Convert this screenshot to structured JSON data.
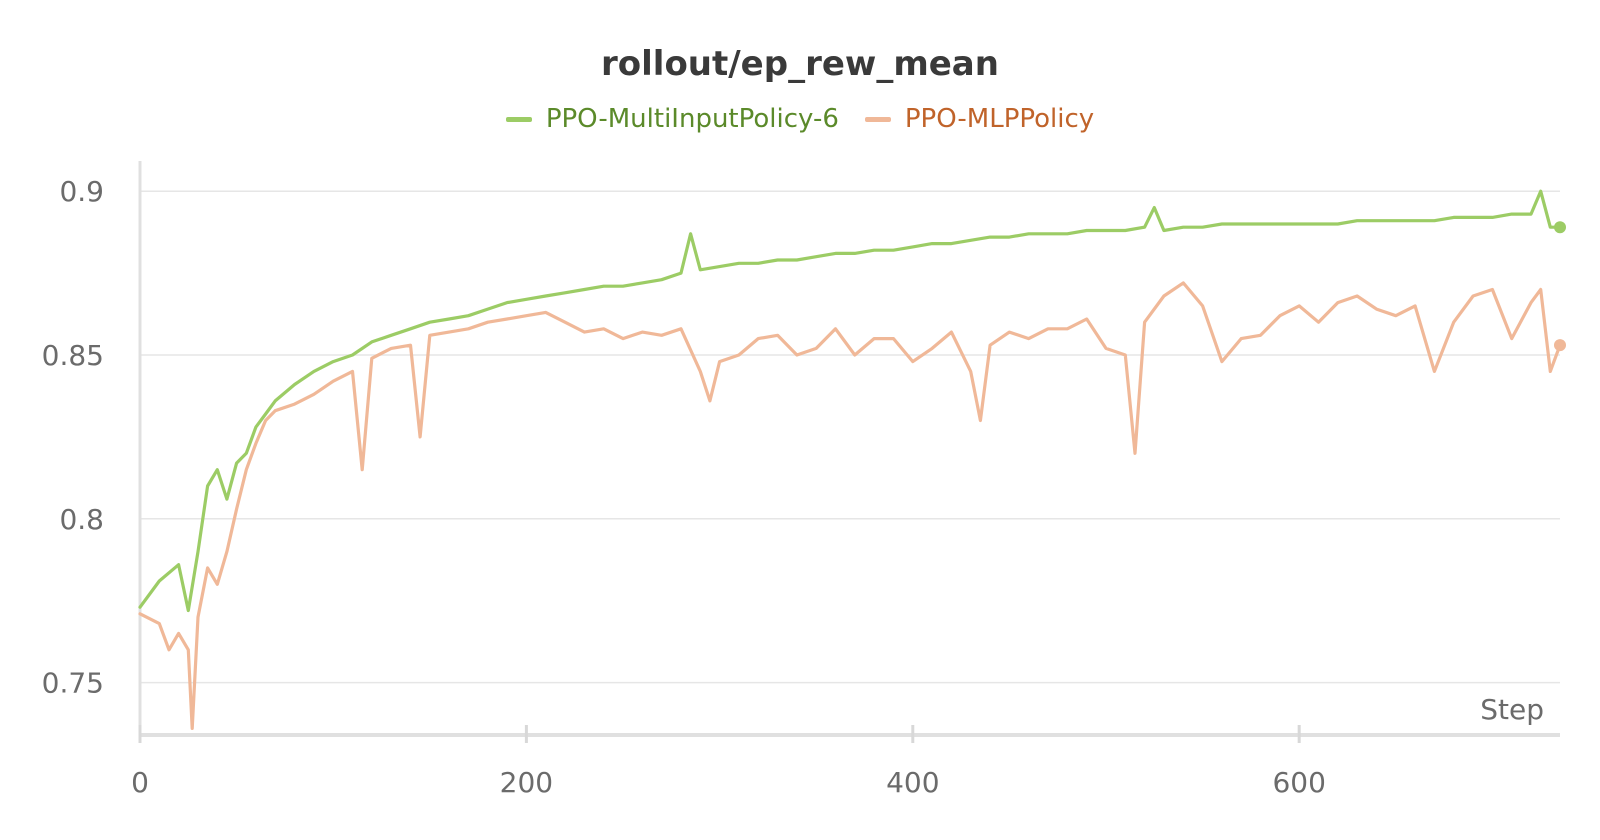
{
  "chart_data": {
    "type": "line",
    "title": "rollout/ep_rew_mean",
    "xlabel": "Step",
    "ylabel": "",
    "xlim": [
      0,
      735
    ],
    "ylim": [
      0.734,
      0.908
    ],
    "x_ticks": [
      0,
      200,
      400,
      600
    ],
    "y_ticks": [
      0.75,
      0.8,
      0.85,
      0.9
    ],
    "x_tick_labels": [
      "0",
      "200",
      "400",
      "600"
    ],
    "y_tick_labels": [
      "0.75",
      "0.8",
      "0.85",
      "0.9"
    ],
    "grid": true,
    "legend_position": "top-center",
    "series": [
      {
        "name": "PPO-MultiInputPolicy-6",
        "color": "#9ccc65",
        "label_color": "#5b8a2a",
        "x": [
          0,
          10,
          20,
          25,
          30,
          35,
          40,
          45,
          50,
          55,
          60,
          65,
          70,
          80,
          90,
          100,
          110,
          120,
          130,
          140,
          150,
          160,
          170,
          180,
          190,
          200,
          210,
          220,
          230,
          240,
          250,
          260,
          270,
          280,
          285,
          290,
          300,
          310,
          320,
          330,
          340,
          350,
          360,
          370,
          380,
          390,
          400,
          410,
          420,
          430,
          440,
          450,
          460,
          470,
          480,
          490,
          500,
          510,
          520,
          525,
          530,
          540,
          550,
          560,
          570,
          580,
          590,
          600,
          610,
          620,
          630,
          640,
          650,
          660,
          670,
          680,
          690,
          700,
          710,
          720,
          725,
          730,
          735
        ],
        "y": [
          0.773,
          0.781,
          0.786,
          0.772,
          0.79,
          0.81,
          0.815,
          0.806,
          0.817,
          0.82,
          0.828,
          0.832,
          0.836,
          0.841,
          0.845,
          0.848,
          0.85,
          0.854,
          0.856,
          0.858,
          0.86,
          0.861,
          0.862,
          0.864,
          0.866,
          0.867,
          0.868,
          0.869,
          0.87,
          0.871,
          0.871,
          0.872,
          0.873,
          0.875,
          0.887,
          0.876,
          0.877,
          0.878,
          0.878,
          0.879,
          0.879,
          0.88,
          0.881,
          0.881,
          0.882,
          0.882,
          0.883,
          0.884,
          0.884,
          0.885,
          0.886,
          0.886,
          0.887,
          0.887,
          0.887,
          0.888,
          0.888,
          0.888,
          0.889,
          0.895,
          0.888,
          0.889,
          0.889,
          0.89,
          0.89,
          0.89,
          0.89,
          0.89,
          0.89,
          0.89,
          0.891,
          0.891,
          0.891,
          0.891,
          0.891,
          0.892,
          0.892,
          0.892,
          0.893,
          0.893,
          0.9,
          0.889,
          0.889
        ]
      },
      {
        "name": "PPO-MLPPolicy",
        "color": "#f0b898",
        "label_color": "#c0632a",
        "x": [
          0,
          10,
          15,
          20,
          25,
          27,
          30,
          35,
          40,
          45,
          50,
          55,
          60,
          65,
          70,
          80,
          90,
          100,
          110,
          115,
          120,
          130,
          140,
          145,
          150,
          160,
          170,
          180,
          190,
          200,
          210,
          220,
          230,
          240,
          250,
          260,
          270,
          280,
          290,
          295,
          300,
          310,
          320,
          330,
          340,
          350,
          360,
          370,
          380,
          390,
          400,
          410,
          420,
          430,
          435,
          440,
          450,
          460,
          470,
          480,
          490,
          500,
          510,
          515,
          520,
          530,
          540,
          550,
          560,
          570,
          580,
          590,
          600,
          610,
          620,
          630,
          640,
          650,
          660,
          670,
          680,
          690,
          700,
          710,
          720,
          725,
          730,
          735
        ],
        "y": [
          0.771,
          0.768,
          0.76,
          0.765,
          0.76,
          0.736,
          0.77,
          0.785,
          0.78,
          0.79,
          0.803,
          0.815,
          0.823,
          0.83,
          0.833,
          0.835,
          0.838,
          0.842,
          0.845,
          0.815,
          0.849,
          0.852,
          0.853,
          0.825,
          0.856,
          0.857,
          0.858,
          0.86,
          0.861,
          0.862,
          0.863,
          0.86,
          0.857,
          0.858,
          0.855,
          0.857,
          0.856,
          0.858,
          0.845,
          0.836,
          0.848,
          0.85,
          0.855,
          0.856,
          0.85,
          0.852,
          0.858,
          0.85,
          0.855,
          0.855,
          0.848,
          0.852,
          0.857,
          0.845,
          0.83,
          0.853,
          0.857,
          0.855,
          0.858,
          0.858,
          0.861,
          0.852,
          0.85,
          0.82,
          0.86,
          0.868,
          0.872,
          0.865,
          0.848,
          0.855,
          0.856,
          0.862,
          0.865,
          0.86,
          0.866,
          0.868,
          0.864,
          0.862,
          0.865,
          0.845,
          0.86,
          0.868,
          0.87,
          0.855,
          0.866,
          0.87,
          0.845,
          0.853
        ]
      }
    ]
  }
}
